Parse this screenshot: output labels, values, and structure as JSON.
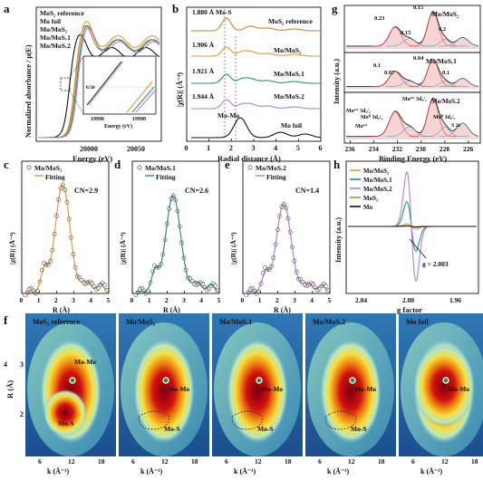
{
  "colors": {
    "mos2_ref": "#c8882a",
    "mo_foil": "#111111",
    "mo_mos2": "#e39a3a",
    "mo_mosv1": "#2e8b84",
    "mo_mosv2": "#b07fd8",
    "xps_red": "#e34a4a",
    "wt_low": "#1f5fa0",
    "wt_high": "#7a0010"
  },
  "panel_labels": {
    "a": "a",
    "b": "b",
    "c": "c",
    "d": "d",
    "e": "e",
    "f": "f",
    "g": "g",
    "h": "h"
  },
  "panel_a": {
    "legend": [
      "MoS₂ reference",
      "Mo foil",
      "Mo/MoS₂",
      "Mo/MoSᵥ1",
      "Mo/MoSᵥ2"
    ],
    "ylabel": "Normalized absorbance / μ(E)",
    "xlabel": "Energy (eV)",
    "xticks": [
      "20000",
      "20050"
    ],
    "inset_xlabel": "Energy (eV)",
    "inset_xticks": [
      "19996",
      "19998"
    ],
    "inset_ytick": "0.50"
  },
  "panel_b": {
    "ylabel": "|χ(R)| (Å⁻⁴)",
    "xlabel": "Radial distance (Å)",
    "xticks": [
      "0",
      "1",
      "2",
      "3",
      "4",
      "5",
      "6"
    ],
    "curves": [
      {
        "name": "MoS₂ reference",
        "peak": "1.880 Å Mo-S"
      },
      {
        "name": "Mo/MoS₂",
        "peak": "1.906 Å"
      },
      {
        "name": "Mo/MoSᵥ1",
        "peak": "1.921 Å"
      },
      {
        "name": "Mo/MoSᵥ2",
        "peak": "1.944 Å"
      },
      {
        "name": "Mo foil",
        "peak": "Mo-Mo"
      }
    ]
  },
  "panel_c": {
    "title": "Mo/MoS₂",
    "fit": "Fitting",
    "cn": "CN=2.9",
    "ylabel": "|χ(R)| (Å⁻⁴)",
    "xlabel": "R (Å)",
    "xticks": [
      "0",
      "1",
      "2",
      "3",
      "4",
      "5"
    ]
  },
  "panel_d": {
    "title": "Mo/MoSᵥ1",
    "fit": "Fitting",
    "cn": "CN=2.6",
    "ylabel": "|χ(R)| (Å⁻⁴)",
    "xlabel": "R (Å)",
    "xticks": [
      "0",
      "1",
      "2",
      "3",
      "4",
      "5"
    ]
  },
  "panel_e": {
    "title": "Mo/MoSᵥ2",
    "fit": "Fitting",
    "cn": "CN=1.4",
    "ylabel": "|χ(R)| (Å⁻⁴)",
    "xlabel": "R (Å)",
    "xticks": [
      "0",
      "1",
      "2",
      "3",
      "4",
      "5"
    ]
  },
  "panel_g": {
    "ylabel": "Intensity (a.u.)",
    "xlabel": "Binding Energy (eV)",
    "xticks": [
      "236",
      "234",
      "232",
      "230",
      "228",
      "226"
    ],
    "sub": [
      {
        "name": "Mo/MoS₂",
        "annots": [
          "0.23",
          "0.15",
          "0.15",
          "0.2"
        ]
      },
      {
        "name": "Mo/MoSᵥ1",
        "annots": [
          "0.1",
          "0.07",
          "0.04",
          "0.1"
        ]
      },
      {
        "name": "Mo/MoSᵥ2",
        "annots": [
          "Mo⁶⁺ 3d₃/₂",
          "Mo⁴⁺ 3d₅/₂",
          "Mo⁴⁺ 3d₃/₂",
          "Mo⁰ 3d₃/₂",
          "Mo⁰ 3d₅/₂",
          "S 2s",
          "Mo⁶⁺"
        ]
      }
    ]
  },
  "panel_h": {
    "legend": [
      "Mo/MoS₂",
      "Mo/MoSᵥ1",
      "Mo/MoSᵥ2",
      "MoS₂",
      "Mo"
    ],
    "ylabel": "Intensity (a.u.)",
    "xlabel": "g factor",
    "xticks": [
      "2.04",
      "2.00",
      "1.96"
    ],
    "annot": "g = 2.003"
  },
  "panel_f": {
    "maps": [
      {
        "title": "MoS₂ reference",
        "labels": [
          "Mo-Mo",
          "Mo-S"
        ]
      },
      {
        "title": "Mo/MoS₂",
        "labels": [
          "Mo-Mo",
          "Mo-S"
        ]
      },
      {
        "title": "Mo/MoSᵥ1",
        "labels": [
          "Mo-Mo",
          "Mo-S"
        ]
      },
      {
        "title": "Mo/MoSᵥ2",
        "labels": [
          "Mo-Mo",
          "Mo-S"
        ]
      },
      {
        "title": "Mo foil",
        "labels": [
          "Mo-Mo"
        ]
      }
    ],
    "ylabel": "R (Å)",
    "yticks": [
      "4",
      "3",
      "2"
    ],
    "xlabel": "k (Å⁻¹)",
    "xticks": [
      "6",
      "12",
      "18"
    ]
  }
}
